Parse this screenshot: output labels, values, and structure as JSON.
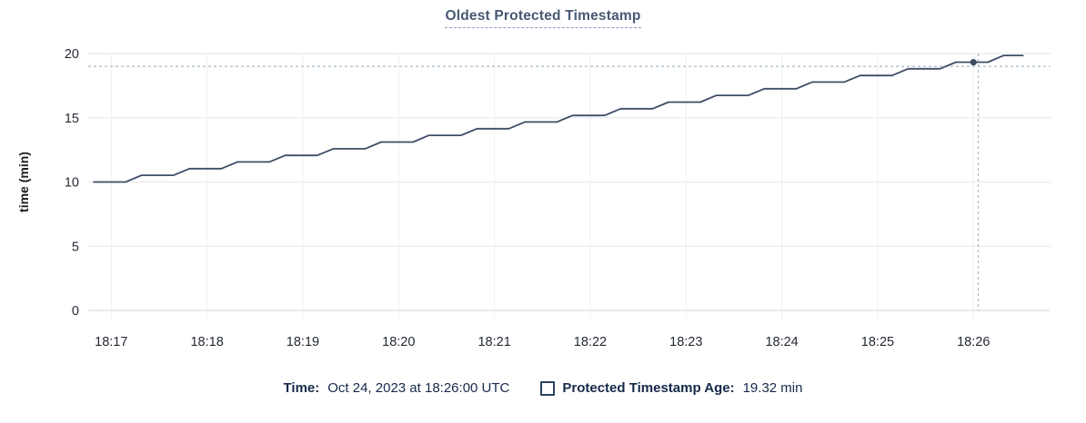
{
  "title": "Oldest Protected Timestamp",
  "tooltip": {
    "time_label": "Time:",
    "time_value": "Oct 24, 2023 at 18:26:00 UTC",
    "series_label": "Protected Timestamp Age:",
    "series_value": "19.32 min"
  },
  "chart_data": {
    "type": "line",
    "title": "Oldest Protected Timestamp",
    "xlabel": "",
    "ylabel": "time (min)",
    "ylim": [
      0,
      20
    ],
    "yticks": [
      0,
      5,
      10,
      15,
      20
    ],
    "xtick_labels": [
      "18:17",
      "18:18",
      "18:19",
      "18:20",
      "18:21",
      "18:22",
      "18:23",
      "18:24",
      "18:25",
      "18:26"
    ],
    "xtick_seconds": [
      0,
      60,
      120,
      180,
      240,
      300,
      360,
      420,
      480,
      540
    ],
    "grid": true,
    "legend_position": "bottom",
    "series": [
      {
        "name": "Protected Timestamp Age",
        "unit": "min",
        "points": [
          [
            -11,
            10.0
          ],
          [
            9,
            10.0
          ],
          [
            19,
            10.52
          ],
          [
            39,
            10.52
          ],
          [
            49,
            11.04
          ],
          [
            69,
            11.04
          ],
          [
            79,
            11.56
          ],
          [
            99,
            11.56
          ],
          [
            109,
            12.07
          ],
          [
            129,
            12.07
          ],
          [
            139,
            12.59
          ],
          [
            159,
            12.59
          ],
          [
            169,
            13.11
          ],
          [
            189,
            13.11
          ],
          [
            199,
            13.63
          ],
          [
            219,
            13.63
          ],
          [
            229,
            14.15
          ],
          [
            249,
            14.15
          ],
          [
            259,
            14.67
          ],
          [
            279,
            14.67
          ],
          [
            289,
            15.18
          ],
          [
            309,
            15.18
          ],
          [
            319,
            15.7
          ],
          [
            339,
            15.7
          ],
          [
            349,
            16.22
          ],
          [
            369,
            16.22
          ],
          [
            379,
            16.74
          ],
          [
            399,
            16.74
          ],
          [
            409,
            17.26
          ],
          [
            429,
            17.26
          ],
          [
            439,
            17.78
          ],
          [
            459,
            17.78
          ],
          [
            469,
            18.29
          ],
          [
            489,
            18.29
          ],
          [
            499,
            18.81
          ],
          [
            519,
            18.81
          ],
          [
            529,
            19.33
          ],
          [
            549,
            19.33
          ],
          [
            559,
            19.85
          ],
          [
            571,
            19.85
          ]
        ]
      }
    ],
    "hover": {
      "point_t": 540,
      "point_v": 19.32,
      "crosshair_t": 543,
      "crosshair_v": 19.0
    },
    "colors": {
      "line": "#3e4c66",
      "dot": "#3e4c66",
      "crosshair": "#a6bac9",
      "grid_h": "#ebebeb",
      "grid_v": "#efefef",
      "axis_line": "#e4e4e4",
      "tick_text": "#242a35",
      "axis_title_text": "#1c1c1c"
    }
  }
}
